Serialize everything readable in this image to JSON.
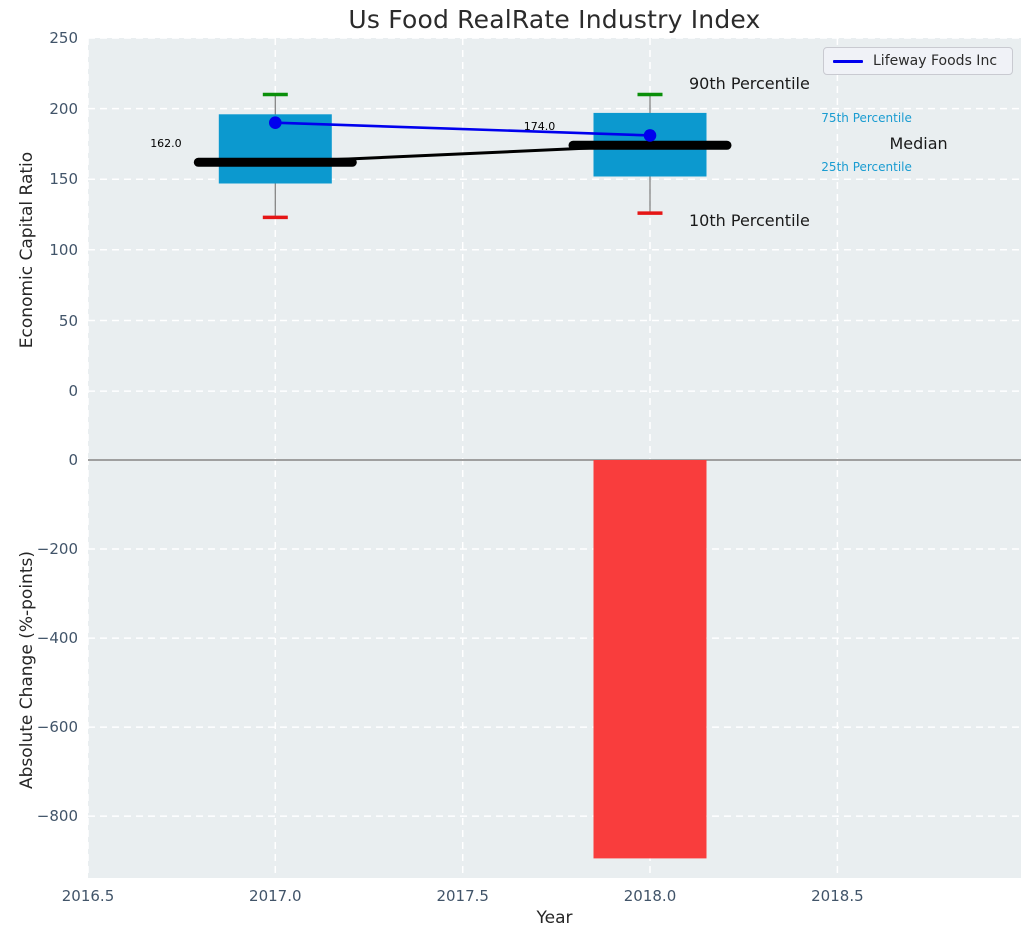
{
  "figure": {
    "legend": {
      "label": "Lifeway Foods Inc"
    }
  },
  "chart_data": {
    "type": "combo",
    "title": "Us Food RealRate Industry Index",
    "xlabel": "Year",
    "xlim": [
      2016.5,
      2018.99
    ],
    "x_ticks": [
      {
        "v": 2016.5,
        "label": "2016.5"
      },
      {
        "v": 2017.0,
        "label": "2017.0"
      },
      {
        "v": 2017.5,
        "label": "2017.5"
      },
      {
        "v": 2018.0,
        "label": "2018.0"
      },
      {
        "v": 2018.5,
        "label": "2018.5"
      }
    ],
    "top_panel": {
      "ylabel": "Economic Capital Ratio",
      "ylim": [
        -48.8,
        250
      ],
      "y_ticks": [
        {
          "v": 250,
          "label": "250"
        },
        {
          "v": 200,
          "label": "200"
        },
        {
          "v": 150,
          "label": "150"
        },
        {
          "v": 100,
          "label": "100"
        },
        {
          "v": 50,
          "label": "50"
        },
        {
          "v": 0,
          "label": "0"
        }
      ],
      "boxes": [
        {
          "year": 2017,
          "p10": 123,
          "p25": 147,
          "median": 162,
          "p75": 196,
          "p90": 210
        },
        {
          "year": 2018,
          "p10": 126,
          "p25": 152,
          "median": 174,
          "p75": 197,
          "p90": 210
        }
      ],
      "median_line": {
        "x": [
          2017,
          2018
        ],
        "y": [
          162,
          174
        ]
      },
      "company_line": {
        "name": "Lifeway Foods Inc",
        "x": [
          2017,
          2018
        ],
        "y": [
          190,
          181
        ]
      },
      "annotations": [
        {
          "text": "90th Percentile",
          "x": 2018.104,
          "y": 217,
          "size": "large",
          "color": "#1a1a1a"
        },
        {
          "text": "75th Percentile",
          "x": 2018.457,
          "y": 193,
          "size": "small",
          "color": "#1a9cd1"
        },
        {
          "text": "Median",
          "x": 2018.639,
          "y": 174,
          "size": "large",
          "color": "#1a1a1a"
        },
        {
          "text": "25th Percentile",
          "x": 2018.457,
          "y": 158,
          "size": "small",
          "color": "#1a9cd1"
        },
        {
          "text": "10th Percentile",
          "x": 2018.104,
          "y": 120,
          "size": "large",
          "color": "#1a1a1a"
        },
        {
          "text": "162.0",
          "x": 2016.666,
          "y": 175,
          "size": "tiny",
          "color": "#000000"
        },
        {
          "text": "174.0",
          "x": 2017.663,
          "y": 187,
          "size": "tiny",
          "color": "#000000"
        }
      ]
    },
    "bottom_panel": {
      "ylabel": "Absolute Change (%-points)",
      "ylim": [
        -939,
        0
      ],
      "y_ticks": [
        {
          "v": 0,
          "label": "0"
        },
        {
          "v": -200,
          "label": "−200"
        },
        {
          "v": -400,
          "label": "−400"
        },
        {
          "v": -600,
          "label": "−600"
        },
        {
          "v": -800,
          "label": "−800"
        }
      ],
      "bars": [
        {
          "year": 2018,
          "value": -895
        }
      ]
    },
    "style": {
      "plot_bg": "#e9eef0",
      "grid": "#ffffff",
      "box_fill": "#0c99cf",
      "whisker": "#848484",
      "cap_top": "#0a8f0a",
      "cap_bottom": "#e51515",
      "median": "#000000",
      "company": "#0000ee",
      "bar_neg": "#f93d3d",
      "divider": "#9f9f9f",
      "tick_text": "#415469",
      "label_text": "#262626"
    }
  }
}
